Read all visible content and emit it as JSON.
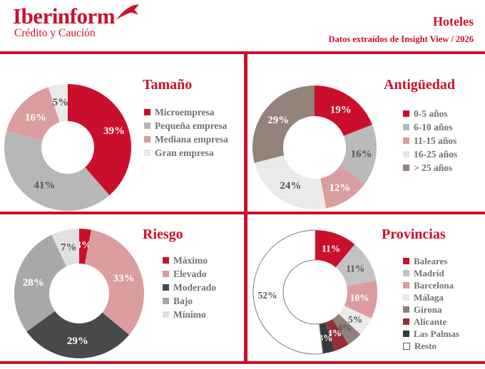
{
  "header": {
    "logo_brand": "Iberinform",
    "logo_tagline": "Crédito y Caución",
    "report_title": "Hoteles",
    "report_subtitle": "Datos extraídos de Insight View / 2026"
  },
  "colors": {
    "brand_red": "#ce0e2d",
    "legend_text_gray": "#717276",
    "dark_label": "#55565a",
    "divider_red": "#ce0e2d"
  },
  "chart_data": [
    {
      "type": "pie",
      "variant": "donut",
      "title": "Tamaño",
      "outer_radius": 89,
      "inner_radius": 37,
      "label_size": 15,
      "legend_position": "right",
      "segments": [
        {
          "label": "Microempresa",
          "value": 39,
          "color": "#ce0e2d",
          "text_color": "#ffffff",
          "lr": 0.78
        },
        {
          "label": "Pequeña empresa",
          "value": 41,
          "color": "#b9b9b9",
          "text_color": "#55565a",
          "lr": 0.69
        },
        {
          "label": "Mediana empresa",
          "value": 16,
          "color": "#dd9fa0",
          "text_color": "#ffffff",
          "lr": 0.7
        },
        {
          "label": "Gran empresa",
          "value": 5,
          "color": "#ededed",
          "text_color": "#55565a",
          "lr": 0.73
        }
      ]
    },
    {
      "type": "pie",
      "variant": "donut",
      "title": "Antigüedad",
      "outer_radius": 87,
      "inner_radius": 44,
      "label_size": 15,
      "legend_position": "right",
      "segments": [
        {
          "label": "0-5 años",
          "value": 19,
          "color": "#ce0e2d",
          "text_color": "#ffffff",
          "lr": 0.75
        },
        {
          "label": "6-10 años",
          "value": 16,
          "color": "#bcbcbc",
          "text_color": "#55565a",
          "lr": 0.76
        },
        {
          "label": "11-15 años",
          "value": 12,
          "color": "#dd9fa0",
          "text_color": "#ffffff",
          "lr": 0.76
        },
        {
          "label": "16-25 años",
          "value": 24,
          "color": "#ededed",
          "text_color": "#55565a",
          "lr": 0.72
        },
        {
          "label": "> 25 años",
          "value": 29,
          "color": "#95847b",
          "text_color": "#ffffff",
          "lr": 0.74
        }
      ]
    },
    {
      "type": "pie",
      "variant": "donut",
      "title": "Riesgo",
      "outer_radius": 91,
      "inner_radius": 42,
      "label_size": 15,
      "legend_position": "right",
      "segments": [
        {
          "label": "Máximo",
          "value": 3,
          "color": "#ce0e2d",
          "text_color": "#ffffff",
          "lr": 0.76
        },
        {
          "label": "Elevado",
          "value": 33,
          "color": "#dd9fa0",
          "text_color": "#ffffff",
          "lr": 0.73
        },
        {
          "label": "Moderado",
          "value": 29,
          "color": "#4a4a4c",
          "text_color": "#ffffff",
          "lr": 0.72
        },
        {
          "label": "Bajo",
          "value": 28,
          "color": "#aaaaaa",
          "text_color": "#ffffff",
          "lr": 0.73
        },
        {
          "label": "Mínimo",
          "value": 7,
          "color": "#e3e3e4",
          "text_color": "#55565a",
          "lr": 0.74
        }
      ]
    },
    {
      "type": "pie",
      "variant": "donut",
      "title": "Provincias",
      "outer_radius": 87,
      "inner_radius": 45,
      "label_size": 13.5,
      "legend_position": "right",
      "segments": [
        {
          "label": "Baleares",
          "value": 11,
          "color": "#ce0e2d",
          "text_color": "#ffffff",
          "lr": 0.75
        },
        {
          "label": "Madrid",
          "value": 11,
          "color": "#c5c5c5",
          "text_color": "#55565a",
          "lr": 0.75
        },
        {
          "label": "Barcelona",
          "value": 10,
          "color": "#dd9fa0",
          "text_color": "#ffffff",
          "lr": 0.72
        },
        {
          "label": "Málaga",
          "value": 5,
          "color": "#ededed",
          "text_color": "#55565a",
          "lr": 0.78
        },
        {
          "label": "Girona",
          "value": 4,
          "color": "#93827a",
          "text_color": "#55565a",
          "lr": 0.74
        },
        {
          "label": "Alicante",
          "value": 4,
          "color": "#973036",
          "text_color": "#ffffff",
          "lr": 0.73
        },
        {
          "label": "Las Palmas",
          "value": 3,
          "color": "#38393b",
          "text_color": "#ffffff",
          "lr": 0.76
        },
        {
          "label": "Resto",
          "value": 52,
          "color": "#ffffff",
          "text_color": "#55565a",
          "lr": 0.77,
          "stroke": "#7a7a7a"
        }
      ]
    }
  ]
}
